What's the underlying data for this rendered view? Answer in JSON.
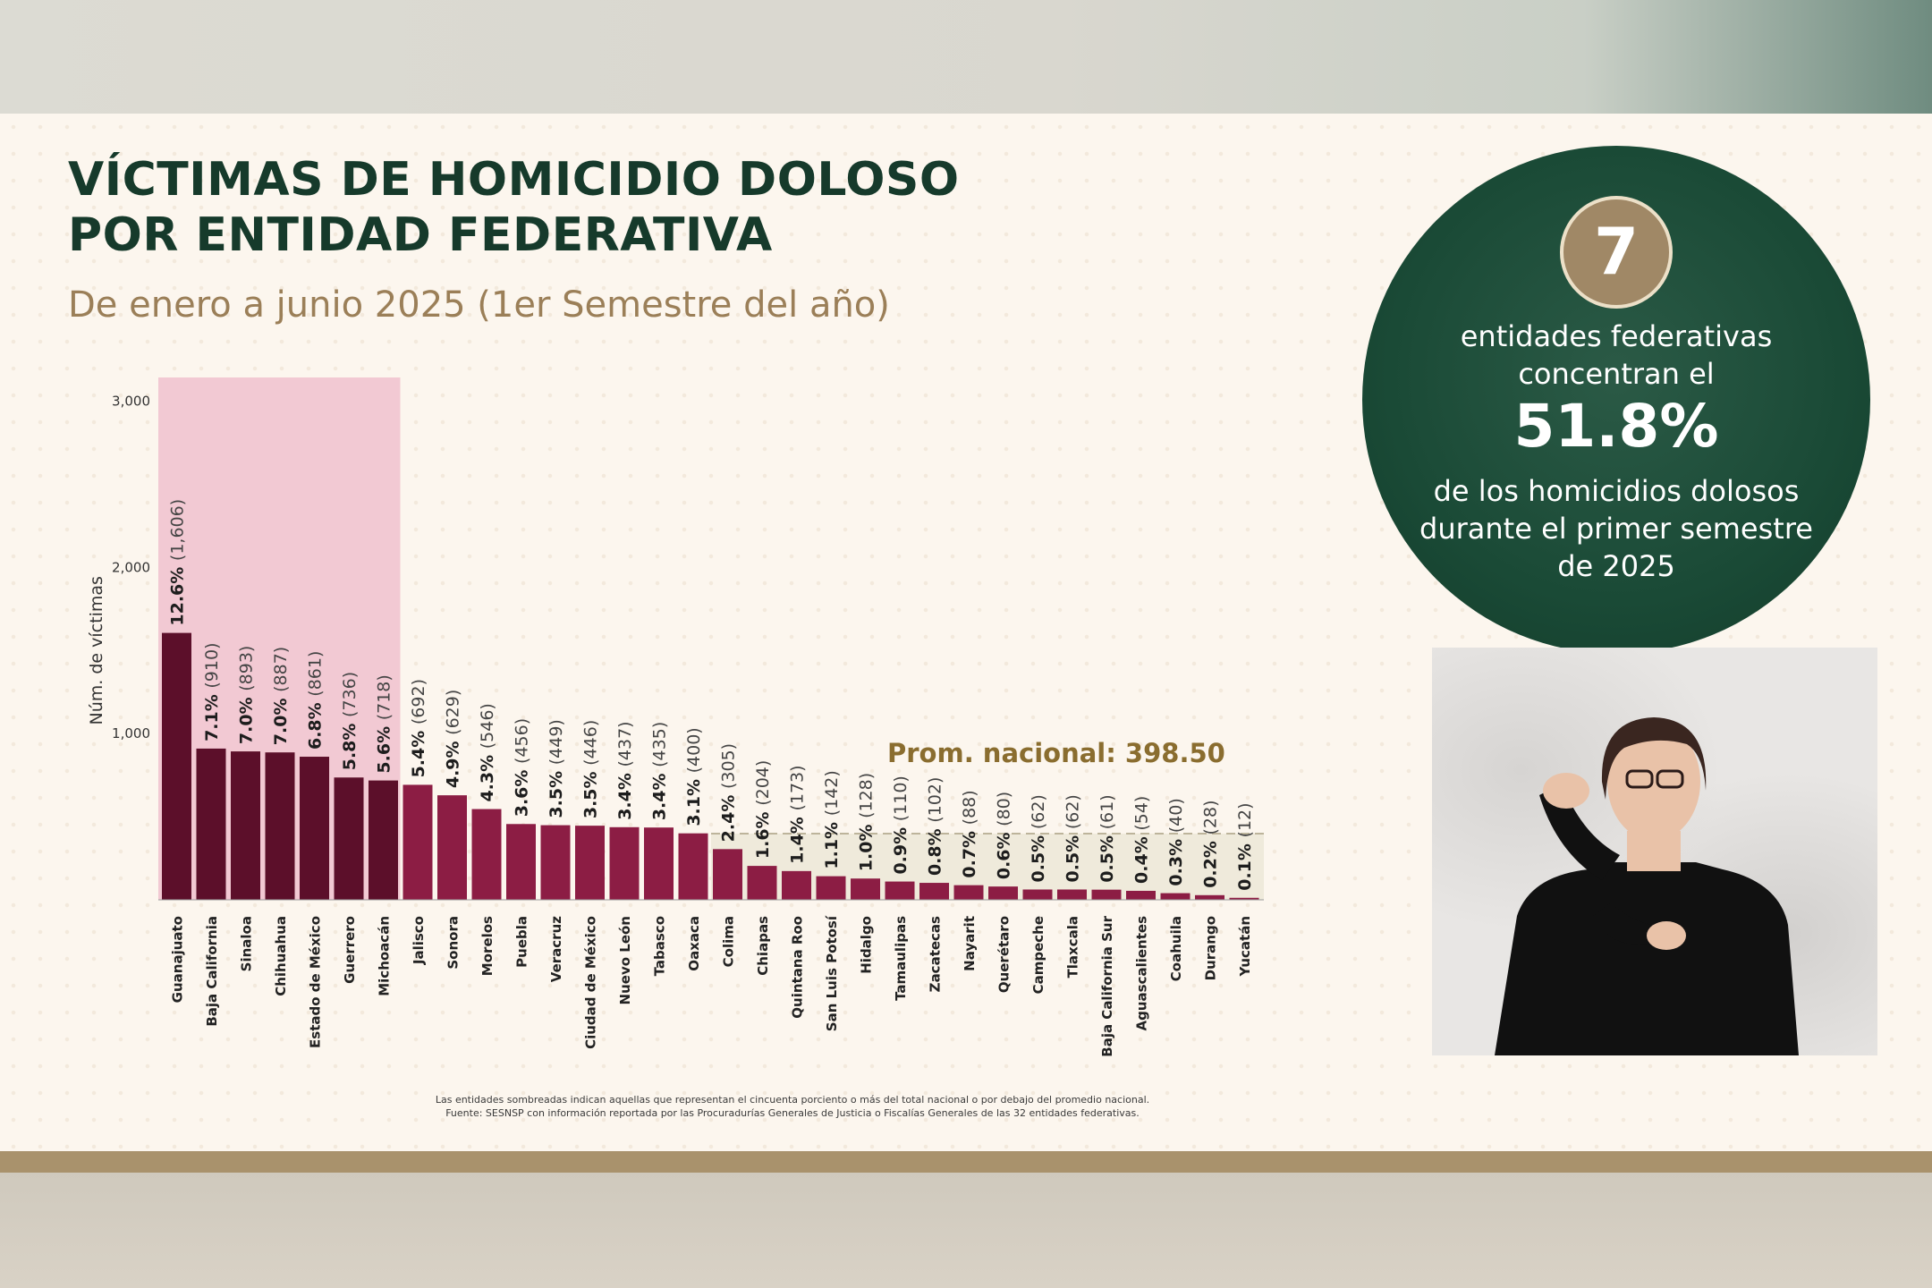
{
  "slide": {
    "title_line1": "VÍCTIMAS DE HOMICIDIO DOLOSO",
    "title_line2": "POR ENTIDAD FEDERATIVA",
    "subtitle": "De enero a junio 2025 (1er Semestre del año)",
    "footnote_line1": "Las entidades sombreadas indican aquellas que representan el cincuenta porciento o más del total nacional o por debajo del promedio nacional.",
    "footnote_line2": "Fuente: SESNSP con información reportada por las Procuradurías Generales de Justicia o Fiscalías Generales de las 32 entidades federativas."
  },
  "highlight": {
    "count": "7",
    "line1": "entidades federativas concentran el",
    "percent": "51.8%",
    "line2": "de los homicidios dolosos durante el primer semestre de 2025"
  },
  "interpreter": {
    "description_icon": "sign-language-interpreter"
  },
  "colors": {
    "title": "#163a2b",
    "subtitle": "#9b7f58",
    "bar_top": "#5c0f2a",
    "bar_other": "#8c1d44",
    "highlight_band": "#f2c9d3",
    "average_band": "#efeadb",
    "average_text": "#8a6d2f"
  },
  "chart_data": {
    "type": "bar",
    "ylabel": "Núm. de víctimas",
    "ylim": [
      0,
      3150
    ],
    "yticks": [
      "3,000",
      "2,000",
      "1,000"
    ],
    "ytick_values": [
      3000,
      2000,
      1000
    ],
    "average_label": "Prom. nacional: 398.50",
    "average_value": 398.5,
    "highlighted_count": 7,
    "categories": [
      "Guanajuato",
      "Baja California",
      "Sinaloa",
      "Chihuahua",
      "Estado de México",
      "Guerrero",
      "Michoacán",
      "Jalisco",
      "Sonora",
      "Morelos",
      "Puebla",
      "Veracruz",
      "Ciudad de México",
      "Nuevo León",
      "Tabasco",
      "Oaxaca",
      "Colima",
      "Chiapas",
      "Quintana Roo",
      "San Luis Potosí",
      "Hidalgo",
      "Tamaulipas",
      "Zacatecas",
      "Nayarit",
      "Querétaro",
      "Campeche",
      "Tlaxcala",
      "Baja California Sur",
      "Aguascalientes",
      "Coahuila",
      "Durango",
      "Yucatán"
    ],
    "values": [
      1606,
      910,
      893,
      887,
      861,
      736,
      718,
      692,
      629,
      546,
      456,
      449,
      446,
      437,
      435,
      400,
      305,
      204,
      173,
      142,
      128,
      110,
      102,
      88,
      80,
      62,
      62,
      61,
      54,
      40,
      28,
      12
    ],
    "pct_labels": [
      "12.6%",
      "7.1%",
      "7.0%",
      "7.0%",
      "6.8%",
      "5.8%",
      "5.6%",
      "5.4%",
      "4.9%",
      "4.3%",
      "3.6%",
      "3.5%",
      "3.5%",
      "3.4%",
      "3.4%",
      "3.1%",
      "2.4%",
      "1.6%",
      "1.4%",
      "1.1%",
      "1.0%",
      "0.9%",
      "0.8%",
      "0.7%",
      "0.6%",
      "0.5%",
      "0.5%",
      "0.5%",
      "0.4%",
      "0.3%",
      "0.2%",
      "0.1%"
    ],
    "count_labels": [
      "(1,606)",
      "(910)",
      "(893)",
      "(887)",
      "(861)",
      "(736)",
      "(718)",
      "(692)",
      "(629)",
      "(546)",
      "(456)",
      "(449)",
      "(446)",
      "(437)",
      "(435)",
      "(400)",
      "(305)",
      "(204)",
      "(173)",
      "(142)",
      "(128)",
      "(110)",
      "(102)",
      "(88)",
      "(80)",
      "(62)",
      "(62)",
      "(61)",
      "(54)",
      "(40)",
      "(28)",
      "(12)"
    ]
  }
}
